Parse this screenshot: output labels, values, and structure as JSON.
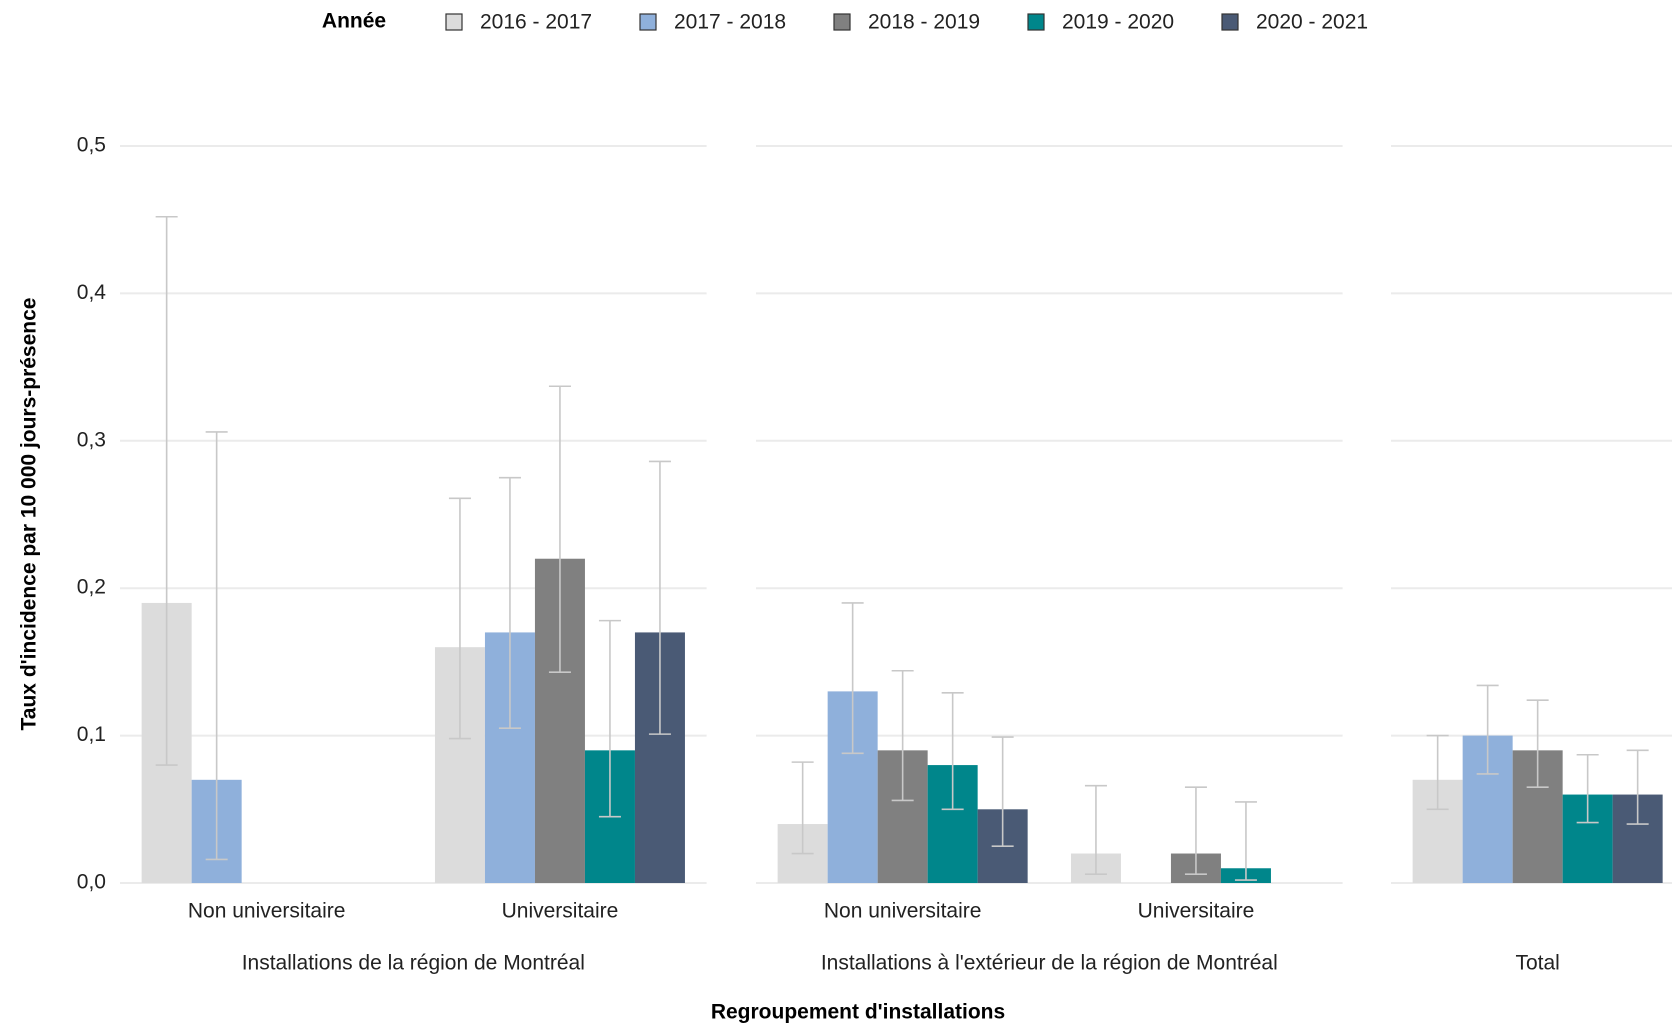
{
  "chart_data": {
    "type": "bar",
    "legend_title": "Année",
    "y_label": "Taux d'incidence par 10 000 jours-présence",
    "x_label": "Regroupement d'installations",
    "panels": [
      {
        "title": "Installations de la région de Montréal",
        "categories": [
          "Non universitaire",
          "Universitaire"
        ]
      },
      {
        "title": "Installations à l'extérieur de la région de Montréal",
        "categories": [
          "Non universitaire",
          "Universitaire"
        ]
      },
      {
        "title": "Total",
        "categories": [
          null
        ]
      }
    ],
    "series": [
      {
        "name": "2016 - 2017",
        "color": "#dcdcdc",
        "values": [
          0.19,
          0.16,
          0.04,
          0.02,
          0.07
        ],
        "lower": [
          0.08,
          0.098,
          0.02,
          0.006,
          0.05
        ],
        "upper": [
          0.452,
          0.261,
          0.082,
          0.066,
          0.1
        ]
      },
      {
        "name": "2017 - 2018",
        "color": "#8fb0db",
        "values": [
          0.07,
          0.17,
          0.13,
          null,
          0.1
        ],
        "lower": [
          0.016,
          0.105,
          0.088,
          null,
          0.074
        ],
        "upper": [
          0.306,
          0.275,
          0.19,
          null,
          0.134
        ]
      },
      {
        "name": "2018 - 2019",
        "color": "#808080",
        "values": [
          null,
          0.22,
          0.09,
          0.02,
          0.09
        ],
        "lower": [
          null,
          0.143,
          0.056,
          0.006,
          0.065
        ],
        "upper": [
          null,
          0.337,
          0.144,
          0.065,
          0.124
        ]
      },
      {
        "name": "2019 - 2020",
        "color": "#00868b",
        "values": [
          null,
          0.09,
          0.08,
          0.01,
          0.06
        ],
        "lower": [
          null,
          0.045,
          0.05,
          0.002,
          0.041
        ],
        "upper": [
          null,
          0.178,
          0.129,
          0.055,
          0.087
        ]
      },
      {
        "name": "2020 - 2021",
        "color": "#4a5a75",
        "values": [
          null,
          0.17,
          0.05,
          null,
          0.06
        ],
        "lower": [
          null,
          0.101,
          0.025,
          null,
          0.04
        ],
        "upper": [
          null,
          0.286,
          0.099,
          null,
          0.09
        ]
      }
    ],
    "ylim": [
      0,
      0.5
    ],
    "yticks": [
      {
        "value": 0,
        "label": "0,0"
      },
      {
        "value": 0.1,
        "label": "0,1"
      },
      {
        "value": 0.2,
        "label": "0,2"
      },
      {
        "value": 0.3,
        "label": "0,3"
      },
      {
        "value": 0.4,
        "label": "0,4"
      },
      {
        "value": 0.5,
        "label": "0,5"
      }
    ],
    "grid": true
  }
}
